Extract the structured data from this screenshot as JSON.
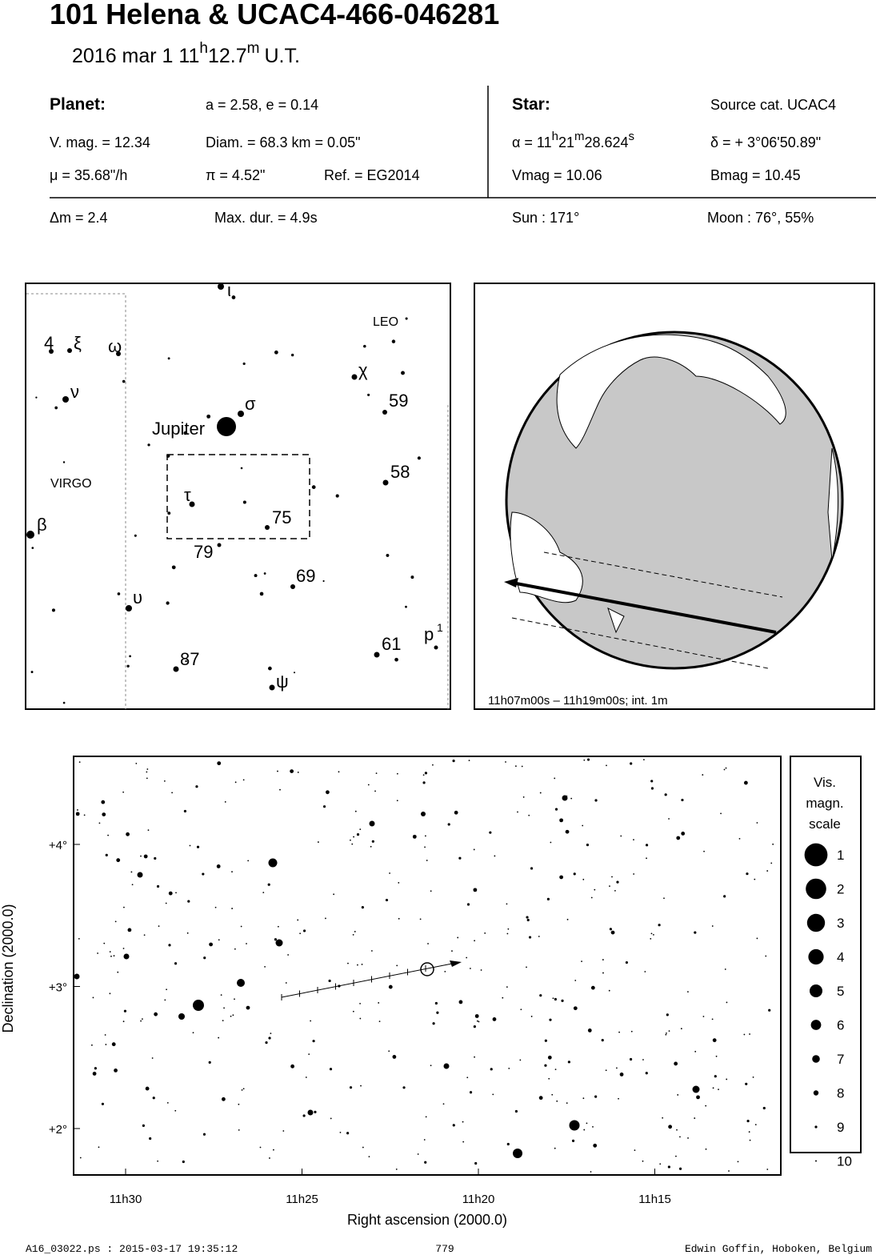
{
  "header": {
    "title": "101 Helena  &  UCAC4-466-046281",
    "date": "2016 mar  1  11",
    "date_sup_h": "h",
    "date_min": "12.7",
    "date_sup_m": "m",
    "date_end": "U.T."
  },
  "planet": {
    "label": "Planet:",
    "orbit": "a = 2.58, e = 0.14",
    "vmag": "V. mag. = 12.34",
    "diam": "Diam. = 68.3 km = 0.05\"",
    "mu": "μ =  35.68\"/h",
    "pi": "π =  4.52\"",
    "ref": "Ref. = EG2014"
  },
  "star": {
    "label": "Star:",
    "source": "Source cat.  UCAC4",
    "alpha": "α = 11",
    "alpha_h": "h",
    "alpha_m_val": "21",
    "alpha_m": "m",
    "alpha_s_val": "28.624",
    "alpha_s": "s",
    "delta": "δ = + 3°06'50.89\"",
    "vmag": "Vmag = 10.06",
    "bmag": "Bmag = 10.45"
  },
  "event": {
    "dm": "Δm = 2.4",
    "maxdur": "Max. dur. = 4.9s",
    "sun": "Sun : 171°",
    "moon": "Moon :  76°, 55%"
  },
  "finder": {
    "labels": [
      "ι",
      "LEO",
      "4",
      "ξ",
      "ω",
      "χ",
      "ν",
      "σ",
      "59",
      "Jupiter",
      "58",
      "VIRGO",
      "τ",
      "75",
      "β",
      "79",
      "69",
      "υ",
      "p",
      "1",
      "61",
      "87",
      "ψ"
    ]
  },
  "earth": {
    "caption": "11h07m00s – 11h19m00s; int.  1m"
  },
  "sky": {
    "yticks": [
      "+4°",
      "+3°",
      "+2°"
    ],
    "xticks": [
      "11h30",
      "11h25",
      "11h20",
      "11h15"
    ],
    "xlabel": "Right ascension (2000.0)",
    "ylabel": "Declination (2000.0)",
    "legend_title": [
      "Vis.",
      "magn.",
      "scale"
    ],
    "magnitudes": [
      1,
      2,
      3,
      4,
      5,
      6,
      7,
      8,
      9,
      10
    ]
  },
  "footer": {
    "left": "A16_03022.ps : 2015-03-17 19:35:12",
    "center": "779",
    "right": "Edwin Goffin, Hoboken, Belgium"
  }
}
